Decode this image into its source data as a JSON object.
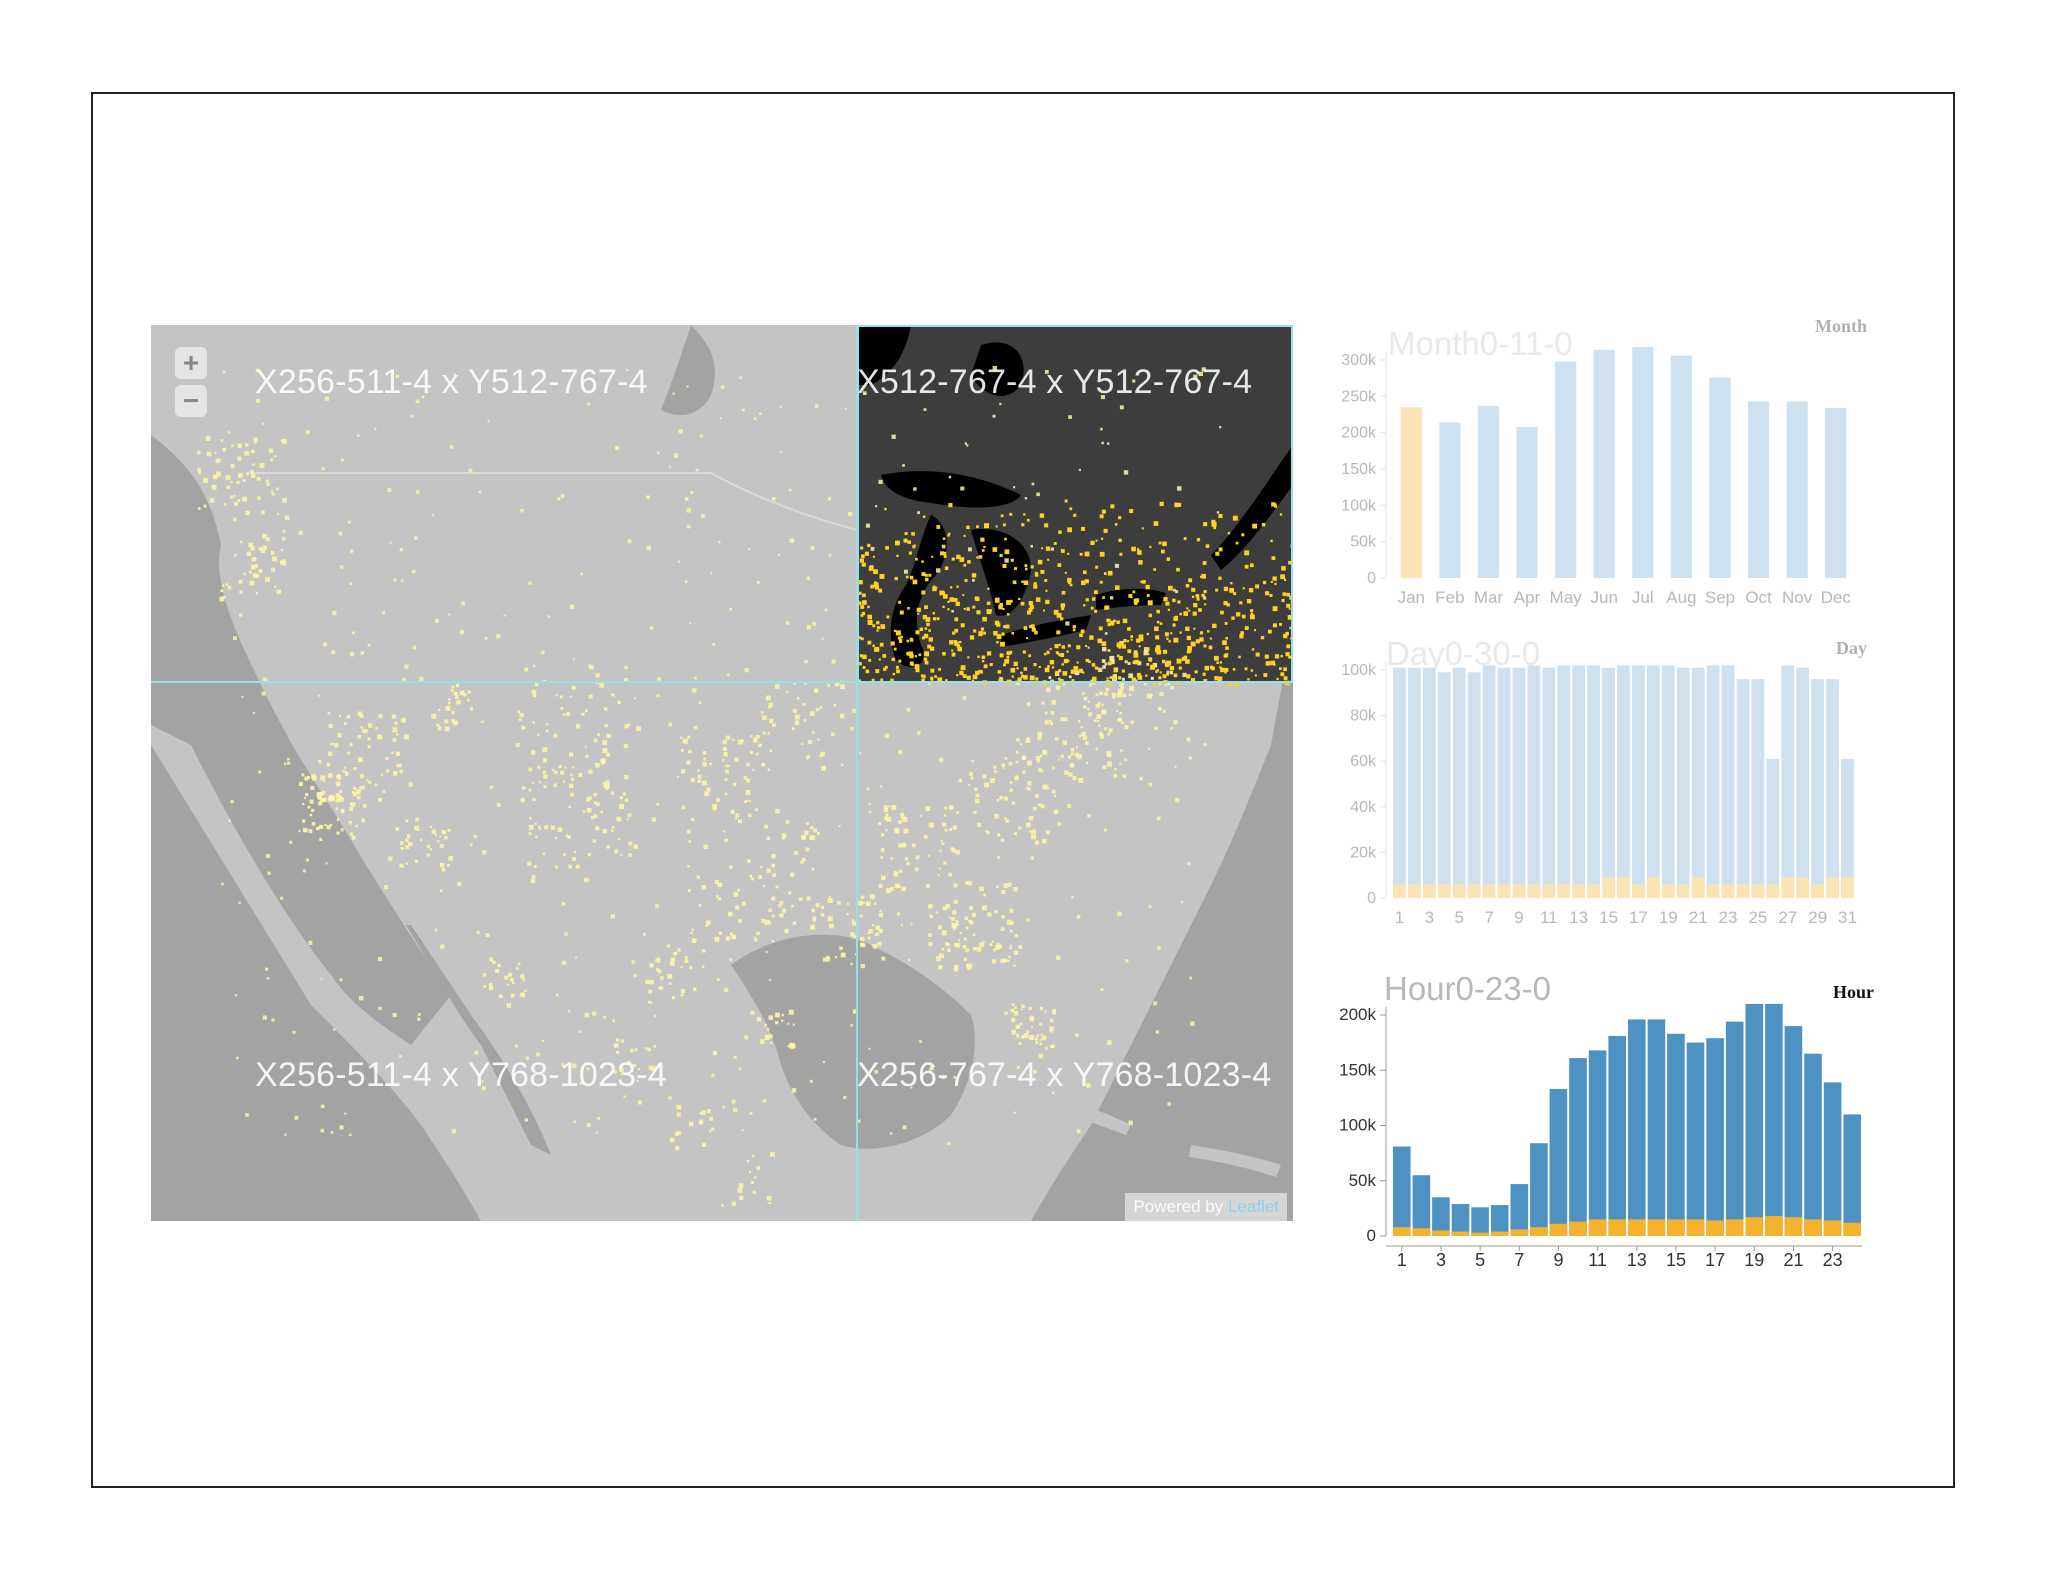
{
  "map": {
    "tile_labels": {
      "top_left": "X256-511-4 x Y512-767-4",
      "top_right": "X512-767-4 x Y512-767-4",
      "bottom_left": "X256-511-4 x Y768-1023-4",
      "bottom_right": "X256-767-4 x Y768-1023-4"
    },
    "zoom_in_label": "+",
    "zoom_out_label": "−",
    "attribution_prefix": "Powered by",
    "attribution_link": "Leaflet",
    "colors": {
      "land": "#c4c4c4",
      "water": "#a3a3a3",
      "dark_land": "#3d3d3d",
      "dark_water": "#000000",
      "points": "#fff3a6",
      "points_bright": "#ffd21e",
      "grid": "#9adfe8"
    }
  },
  "chart_data": [
    {
      "type": "bar",
      "title": "Month0-11-0",
      "corner_label": "Month",
      "categories": [
        "Jan",
        "Feb",
        "Mar",
        "Apr",
        "May",
        "Jun",
        "Jul",
        "Aug",
        "Sep",
        "Oct",
        "Nov",
        "Dec"
      ],
      "series": [
        {
          "values": [
            235000,
            214000,
            237000,
            208000,
            298000,
            314000,
            320000,
            306000,
            276000,
            243000,
            243000,
            234000
          ]
        }
      ],
      "highlight_index": 0,
      "ylim": [
        0,
        300000
      ],
      "yticks": [
        "0",
        "50k",
        "100k",
        "150k",
        "200k",
        "250k",
        "300k"
      ],
      "colors": {
        "bar": "#cfe1ee",
        "highlight": "#fbe3b4",
        "title": "#e9e9e9",
        "axis_text": "#b8b8b8"
      }
    },
    {
      "type": "bar",
      "title": "Day0-30-0",
      "corner_label": "Day",
      "categories": [
        "1",
        "2",
        "3",
        "4",
        "5",
        "6",
        "7",
        "8",
        "9",
        "10",
        "11",
        "12",
        "13",
        "14",
        "15",
        "16",
        "17",
        "18",
        "19",
        "20",
        "21",
        "22",
        "23",
        "24",
        "25",
        "26",
        "27",
        "28",
        "29",
        "30",
        "31"
      ],
      "xtick_labels": [
        "1",
        "3",
        "5",
        "7",
        "9",
        "11",
        "13",
        "15",
        "17",
        "19",
        "21",
        "23",
        "25",
        "27",
        "29",
        "31"
      ],
      "series": [
        {
          "values": [
            101000,
            101000,
            101000,
            99000,
            101000,
            99000,
            102000,
            101000,
            101000,
            102000,
            101000,
            102000,
            102000,
            102000,
            101000,
            102000,
            102000,
            102000,
            102000,
            101000,
            101000,
            102000,
            102000,
            96000,
            96000,
            61000,
            102000,
            101000,
            96000,
            96000,
            61000
          ]
        },
        {
          "values": [
            6000,
            6000,
            6000,
            6000,
            6000,
            6000,
            6000,
            6000,
            6000,
            6000,
            6000,
            6000,
            6000,
            6000,
            9000,
            9000,
            6000,
            9000,
            6000,
            6000,
            9000,
            6000,
            6000,
            6000,
            6000,
            6000,
            9000,
            9000,
            6000,
            9000,
            9000
          ]
        }
      ],
      "ylim": [
        0,
        100000
      ],
      "yticks": [
        "0",
        "20k",
        "40k",
        "60k",
        "80k",
        "100k"
      ],
      "colors": {
        "bar": "#cfe1ee",
        "highlight": "#fbe3b4",
        "title": "#e9e9e9",
        "axis_text": "#b8b8b8"
      }
    },
    {
      "type": "bar",
      "title": "Hour0-23-0",
      "corner_label": "Hour",
      "categories": [
        "1",
        "2",
        "3",
        "4",
        "5",
        "6",
        "7",
        "8",
        "9",
        "10",
        "11",
        "12",
        "13",
        "14",
        "15",
        "16",
        "17",
        "18",
        "19",
        "20",
        "21",
        "22",
        "23",
        "24"
      ],
      "xtick_labels": [
        "1",
        "3",
        "5",
        "7",
        "9",
        "11",
        "13",
        "15",
        "17",
        "19",
        "21",
        "23"
      ],
      "series": [
        {
          "values": [
            81000,
            55000,
            35000,
            29000,
            26000,
            28000,
            47000,
            84000,
            133000,
            161000,
            168000,
            181000,
            196000,
            196000,
            183000,
            175000,
            179000,
            194000,
            210000,
            210000,
            190000,
            165000,
            139000,
            110000
          ]
        },
        {
          "values": [
            8000,
            7000,
            5000,
            4000,
            3000,
            4000,
            6000,
            8000,
            11000,
            13000,
            15000,
            15000,
            15000,
            15000,
            15000,
            15000,
            14000,
            15000,
            17000,
            18000,
            17000,
            15000,
            14000,
            12000
          ]
        }
      ],
      "ylim": [
        0,
        200000
      ],
      "yticks": [
        "0",
        "50k",
        "100k",
        "150k",
        "200k"
      ],
      "colors": {
        "bar": "#4e92c3",
        "highlight": "#f5b22e",
        "title": "#b8b8b8",
        "axis_text": "#333333"
      }
    }
  ]
}
